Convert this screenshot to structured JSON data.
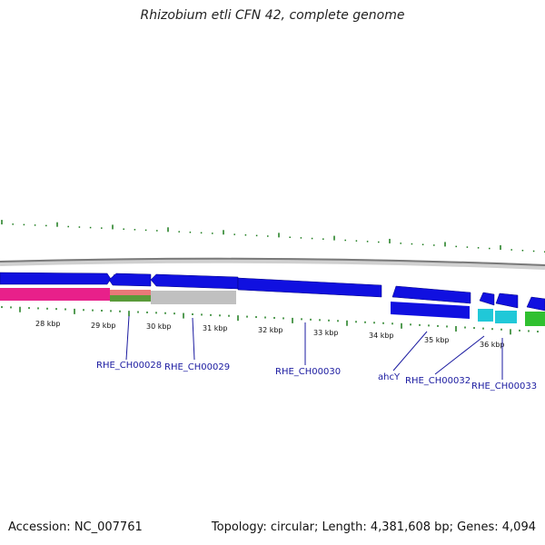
{
  "title": "Rhizobium etli CFN 42, complete genome",
  "accession": "Accession: NC_007761",
  "stats": "Topology: circular; Length: 4,381,608 bp; Genes: 4,094",
  "scale_labels": [
    "28 kbp",
    "29 kbp",
    "30 kbp",
    "31 kbp",
    "32 kbp",
    "33 kbp",
    "34 kbp",
    "35 kbp",
    "36 kbp"
  ],
  "gene_labels": [
    "RHE_CH00028",
    "RHE_CH00029",
    "RHE_CH00030",
    "ahcY",
    "RHE_CH00032",
    "RHE_CH00033"
  ],
  "colors": {
    "gene_forward": "#1010e0",
    "rrna_track": "#e8208a",
    "gray_track": "#c0c0c0",
    "cyan_track": "#20c8d8",
    "green_track": "#30c030",
    "tick_green": "#1a7a1a",
    "label_blue": "#1a1aa0",
    "backbone": "#999999"
  }
}
